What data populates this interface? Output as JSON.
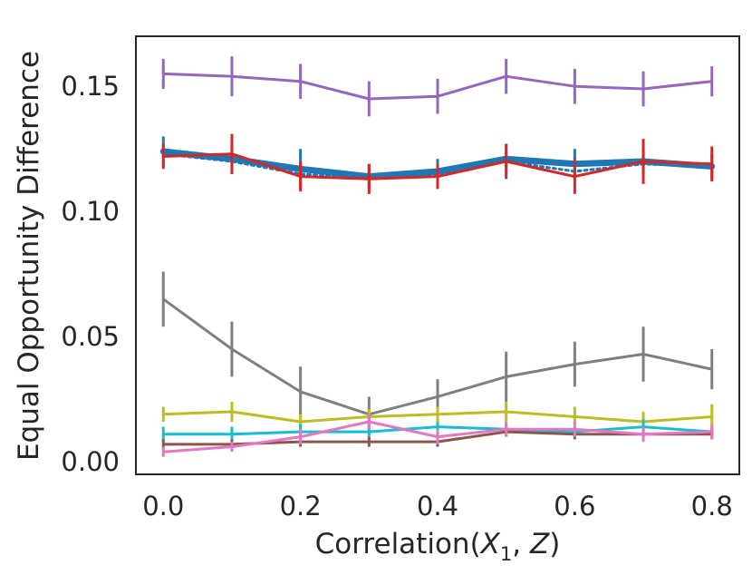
{
  "chart_data": {
    "type": "line",
    "title": "",
    "xlabel": "Correlation(X₁, Z)",
    "xlabel_parts": {
      "prefix": "Correlation(",
      "x": "X",
      "sub": "1",
      "mid": ", ",
      "z": "Z",
      "suffix": ")"
    },
    "ylabel": "Equal Opportunity Difference",
    "xlim": [
      -0.04,
      0.84
    ],
    "ylim": [
      -0.005,
      0.17
    ],
    "x": [
      0.0,
      0.1,
      0.2,
      0.3,
      0.4,
      0.5,
      0.6,
      0.7,
      0.8
    ],
    "xticks": [
      0.0,
      0.2,
      0.4,
      0.6,
      0.8
    ],
    "xtick_labels": [
      "0.0",
      "0.2",
      "0.4",
      "0.6",
      "0.8"
    ],
    "yticks": [
      0.0,
      0.05,
      0.1,
      0.15
    ],
    "ytick_labels": [
      "0.00",
      "0.05",
      "0.10",
      "0.15"
    ],
    "grid": false,
    "legend": "none",
    "series": [
      {
        "name": "purple",
        "color": "#9467bd",
        "style": "solid",
        "values": [
          0.155,
          0.154,
          0.152,
          0.145,
          0.146,
          0.154,
          0.15,
          0.149,
          0.152
        ],
        "errors": [
          0.006,
          0.008,
          0.007,
          0.007,
          0.007,
          0.007,
          0.007,
          0.007,
          0.006
        ]
      },
      {
        "name": "blue",
        "color": "#1f77b4",
        "style": "thick",
        "values": [
          0.124,
          0.121,
          0.117,
          0.114,
          0.116,
          0.121,
          0.119,
          0.12,
          0.118
        ],
        "errors": [
          0.006,
          0.006,
          0.008,
          0.005,
          0.005,
          0.006,
          0.006,
          0.005,
          0.005
        ]
      },
      {
        "name": "blue-dotted",
        "color": "#1f77b4",
        "style": "dotted",
        "values": [
          0.123,
          0.12,
          0.115,
          0.113,
          0.115,
          0.12,
          0.116,
          0.119,
          0.118
        ],
        "errors": [
          0.0,
          0.0,
          0.0,
          0.0,
          0.0,
          0.0,
          0.0,
          0.0,
          0.0
        ]
      },
      {
        "name": "red",
        "color": "#d62728",
        "style": "solid",
        "values": [
          0.122,
          0.123,
          0.114,
          0.113,
          0.114,
          0.12,
          0.114,
          0.12,
          0.119
        ],
        "errors": [
          0.005,
          0.008,
          0.006,
          0.006,
          0.005,
          0.007,
          0.007,
          0.009,
          0.007
        ]
      },
      {
        "name": "gray",
        "color": "#7f7f7f",
        "style": "solid",
        "values": [
          0.065,
          0.045,
          0.028,
          0.019,
          0.026,
          0.034,
          0.039,
          0.043,
          0.037
        ],
        "errors": [
          0.011,
          0.011,
          0.01,
          0.007,
          0.007,
          0.01,
          0.009,
          0.011,
          0.008
        ]
      },
      {
        "name": "olive",
        "color": "#bcbd22",
        "style": "solid",
        "values": [
          0.019,
          0.02,
          0.016,
          0.018,
          0.019,
          0.02,
          0.018,
          0.016,
          0.018
        ],
        "errors": [
          0.003,
          0.004,
          0.003,
          0.003,
          0.003,
          0.004,
          0.004,
          0.004,
          0.005
        ]
      },
      {
        "name": "cyan",
        "color": "#17becf",
        "style": "solid",
        "values": [
          0.011,
          0.011,
          0.012,
          0.012,
          0.014,
          0.013,
          0.012,
          0.014,
          0.012
        ],
        "errors": [
          0.003,
          0.003,
          0.003,
          0.002,
          0.002,
          0.002,
          0.002,
          0.003,
          0.002
        ]
      },
      {
        "name": "brown",
        "color": "#8c564b",
        "style": "solid",
        "values": [
          0.007,
          0.007,
          0.008,
          0.008,
          0.008,
          0.012,
          0.011,
          0.011,
          0.011
        ],
        "errors": [
          0.002,
          0.002,
          0.002,
          0.002,
          0.002,
          0.002,
          0.002,
          0.002,
          0.002
        ]
      },
      {
        "name": "pink",
        "color": "#e377c2",
        "style": "solid",
        "values": [
          0.004,
          0.006,
          0.01,
          0.016,
          0.01,
          0.013,
          0.013,
          0.011,
          0.012
        ],
        "errors": [
          0.002,
          0.002,
          0.003,
          0.003,
          0.003,
          0.003,
          0.003,
          0.003,
          0.003
        ]
      }
    ]
  }
}
